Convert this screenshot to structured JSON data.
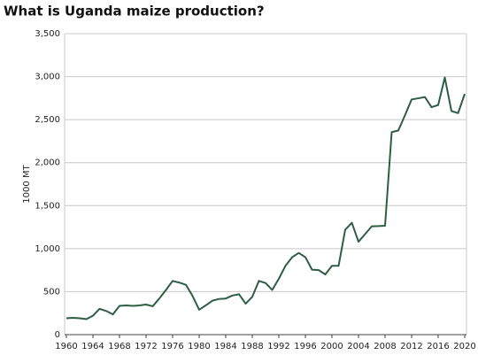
{
  "chart_data": {
    "type": "line",
    "title": "What is Uganda maize production?",
    "y_label": "1000 MT",
    "x": [
      1960,
      1961,
      1962,
      1963,
      1964,
      1965,
      1966,
      1967,
      1968,
      1969,
      1970,
      1971,
      1972,
      1973,
      1974,
      1975,
      1976,
      1977,
      1978,
      1979,
      1980,
      1981,
      1982,
      1983,
      1984,
      1985,
      1986,
      1987,
      1988,
      1989,
      1990,
      1991,
      1992,
      1993,
      1994,
      1995,
      1996,
      1997,
      1998,
      1999,
      2000,
      2001,
      2002,
      2003,
      2004,
      2005,
      2006,
      2007,
      2008,
      2009,
      2010,
      2011,
      2012,
      2013,
      2014,
      2015,
      2016,
      2017,
      2018,
      2019,
      2020
    ],
    "series": [
      {
        "color": "#2d5e45",
        "values": [
          190,
          195,
          190,
          180,
          220,
          300,
          275,
          235,
          335,
          340,
          335,
          340,
          350,
          330,
          420,
          520,
          625,
          605,
          580,
          450,
          290,
          340,
          395,
          415,
          420,
          455,
          470,
          360,
          440,
          625,
          600,
          520,
          650,
          800,
          900,
          950,
          900,
          755,
          750,
          700,
          800,
          800,
          1220,
          1300,
          1080,
          1170,
          1260,
          1262,
          1266,
          2355,
          2374,
          2550,
          2735,
          2748,
          2763,
          2645,
          2670,
          2990,
          2600,
          2575,
          2800
        ]
      }
    ],
    "xlim": [
      1960,
      2020
    ],
    "xticks": [
      1960,
      1964,
      1968,
      1972,
      1976,
      1980,
      1984,
      1988,
      1992,
      1996,
      2000,
      2004,
      2008,
      2012,
      2016,
      2020
    ],
    "ylim": [
      0,
      3500
    ],
    "yticks": [
      0,
      {
        "value": 500,
        "label": "500"
      },
      {
        "value": 1000,
        "label": "1,000"
      },
      {
        "value": 1500,
        "label": "1,500"
      },
      {
        "value": 2000,
        "label": "2,000"
      },
      {
        "value": 2500,
        "label": "2,500"
      },
      {
        "value": 3000,
        "label": "3,000"
      },
      {
        "value": 3500,
        "label": "3,500"
      }
    ],
    "grid": true
  }
}
